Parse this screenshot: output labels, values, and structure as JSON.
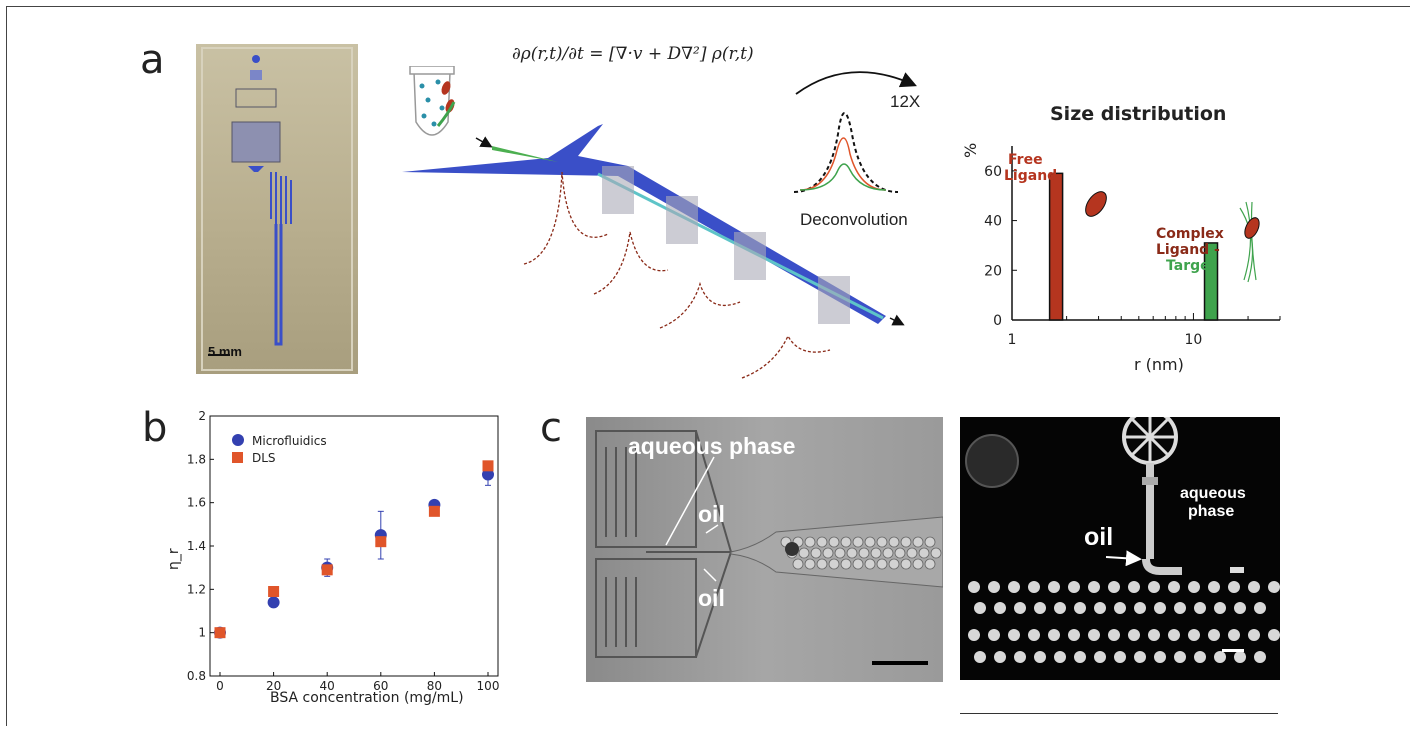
{
  "panels": {
    "a": "a",
    "b": "b",
    "c": "c"
  },
  "panel_a": {
    "scale_bar": "5 mm",
    "equation": "∂ρ(r,t)/∂t = [∇·v + D∇²] ρ(r,t)",
    "magnification": "12X",
    "deconvolution_label": "Deconvolution"
  },
  "size_chart": {
    "title": "Size distribution",
    "ylabel": "%",
    "xlabel": "r (nm)",
    "ann_free": "Free\nLigand",
    "ann_complex_1": "Complex",
    "ann_complex_2": "Ligand -",
    "ann_complex_3": "Target"
  },
  "panel_b": {
    "ylabel": "η_r",
    "xlabel": "BSA concentration (mg/mL)",
    "legend_microfluidics": "Microfluidics",
    "legend_dls": "DLS"
  },
  "panel_c": {
    "left_aqueous": "aqueous phase",
    "left_oil_top": "oil",
    "left_oil_bottom": "oil",
    "right_aqueous_1": "aqueous",
    "right_aqueous_2": "phase",
    "right_oil": "oil"
  },
  "colors": {
    "free_bar": "#b5351f",
    "complex_bar": "#3fa34d",
    "microfluidics": "#3340b0",
    "dls": "#e0552a",
    "channel_blue": "#3a4fc8",
    "channel_green": "#4caf50"
  },
  "chart_data": [
    {
      "type": "bar",
      "title": "Size distribution",
      "xlabel": "r (nm)",
      "ylabel": "%",
      "x_scale": "log",
      "xlim": [
        1,
        30
      ],
      "ylim": [
        0,
        70
      ],
      "x_ticks": [
        1,
        10
      ],
      "y_ticks": [
        0,
        20,
        40,
        60
      ],
      "categories": [
        "Free Ligand",
        "Complex Ligand - Target"
      ],
      "x": [
        1.75,
        12.5
      ],
      "values": [
        59,
        31
      ],
      "colors": [
        "#b5351f",
        "#3fa34d"
      ]
    },
    {
      "type": "scatter",
      "xlabel": "BSA concentration (mg/mL)",
      "ylabel": "η_r",
      "xlim": [
        0,
        100
      ],
      "ylim": [
        0.8,
        2
      ],
      "x_ticks": [
        0,
        20,
        40,
        60,
        80,
        100
      ],
      "y_ticks": [
        0.8,
        1,
        1.2,
        1.4,
        1.6,
        1.8,
        2
      ],
      "legend_position": "top-left",
      "series": [
        {
          "name": "Microfluidics",
          "marker": "circle",
          "color": "#3340b0",
          "x": [
            0,
            20,
            40,
            60,
            80,
            100
          ],
          "y": [
            1.0,
            1.14,
            1.3,
            1.45,
            1.59,
            1.73
          ],
          "err": [
            0,
            0,
            0.04,
            0.11,
            0.01,
            0.05
          ]
        },
        {
          "name": "DLS",
          "marker": "square",
          "color": "#e0552a",
          "x": [
            0,
            20,
            40,
            60,
            80,
            100
          ],
          "y": [
            1.0,
            1.19,
            1.29,
            1.42,
            1.56,
            1.77
          ],
          "err": [
            0,
            0,
            0,
            0,
            0,
            0
          ]
        }
      ]
    }
  ]
}
